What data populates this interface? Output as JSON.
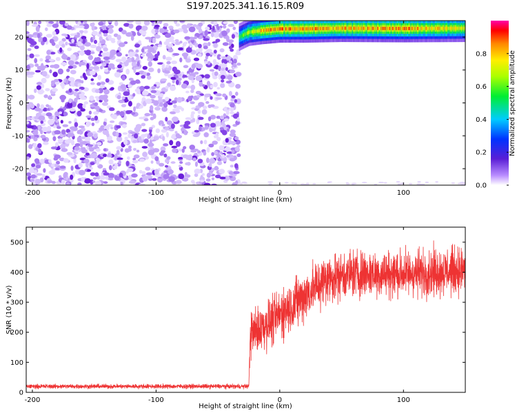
{
  "title": "S197.2025.341.16.15.R09",
  "chart_data": [
    {
      "type": "heatmap",
      "xlabel": "Height of straight line (km)",
      "ylabel": "Frequency (Hz)",
      "xlim": [
        -205,
        150
      ],
      "ylim": [
        -25,
        25
      ],
      "xticks": [
        -200,
        -100,
        0,
        100
      ],
      "yticks": [
        -20,
        -10,
        0,
        10,
        20
      ],
      "noise_region_x": [
        -205,
        -33
      ],
      "signal_band": {
        "x": [
          -33,
          -25,
          -15,
          0,
          20,
          50,
          100,
          150
        ],
        "freq": [
          20,
          21.5,
          22,
          22.5,
          22.5,
          22.7,
          22.6,
          22.7
        ],
        "peak_amplitude": [
          0.6,
          0.75,
          0.9,
          0.95,
          0.95,
          0.9,
          0.95,
          0.8
        ]
      },
      "colorbar": {
        "label": "Normalized spectral amplitude",
        "range": [
          0.0,
          1.0
        ],
        "ticks": [
          "0.0",
          "0.2",
          "0.4",
          "0.6",
          "0.8"
        ]
      }
    },
    {
      "type": "line",
      "xlabel": "Height of straight line (km)",
      "ylabel": "SNR (10 * v/v)",
      "xlim": [
        -205,
        150
      ],
      "ylim": [
        0,
        550
      ],
      "xticks": [
        -200,
        -100,
        0,
        100
      ],
      "yticks": [
        0,
        100,
        200,
        300,
        400,
        500
      ],
      "color": "#ee3333",
      "series": [
        {
          "name": "SNR",
          "x": [
            -205,
            -100,
            -25,
            -24,
            -15,
            -5,
            0,
            10,
            20,
            25,
            30,
            35,
            40,
            50,
            60,
            80,
            100,
            120,
            140,
            150
          ],
          "y": [
            20,
            20,
            20,
            195,
            215,
            240,
            260,
            290,
            320,
            340,
            355,
            370,
            380,
            390,
            395,
            395,
            395,
            400,
            405,
            405
          ]
        }
      ]
    }
  ]
}
